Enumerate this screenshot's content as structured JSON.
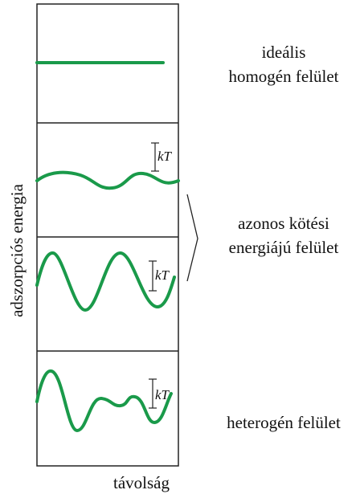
{
  "axes": {
    "y_label": "adszorpciós energia",
    "x_label": "távolság"
  },
  "groups": [
    {
      "lines": [
        "ideális",
        "homogén felület"
      ]
    },
    {
      "lines": [
        "azonos kötési",
        "energiájú felület"
      ]
    },
    {
      "lines": [
        "heterogén felület"
      ]
    }
  ],
  "scale_labels": [
    "kT",
    "kT",
    "kT"
  ]
}
